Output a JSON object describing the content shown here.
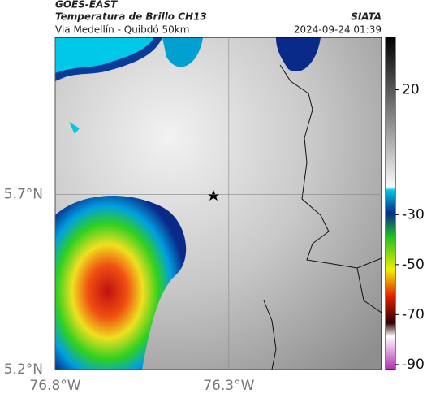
{
  "header": {
    "source": "GOES-EAST",
    "title": "Temperatura de Brillo CH13",
    "credit": "SIATA",
    "subtitle": "Via Medellín - Quibdó 50km",
    "timestamp": "2024-09-24 01:39"
  },
  "map": {
    "xlim": [
      -76.8,
      -75.86
    ],
    "ylim": [
      5.2,
      6.15
    ],
    "xticks": [
      {
        "value": -76.8,
        "label": "76.8°W"
      },
      {
        "value": -76.3,
        "label": "76.3°W"
      }
    ],
    "yticks": [
      {
        "value": 5.7,
        "label": "5.7°N"
      },
      {
        "value": 5.2,
        "label": "5.2°N"
      }
    ]
  },
  "colorbar": {
    "lim": [
      41,
      -92
    ],
    "ticks": [
      20,
      -30,
      -50,
      -70,
      -90
    ]
  }
}
